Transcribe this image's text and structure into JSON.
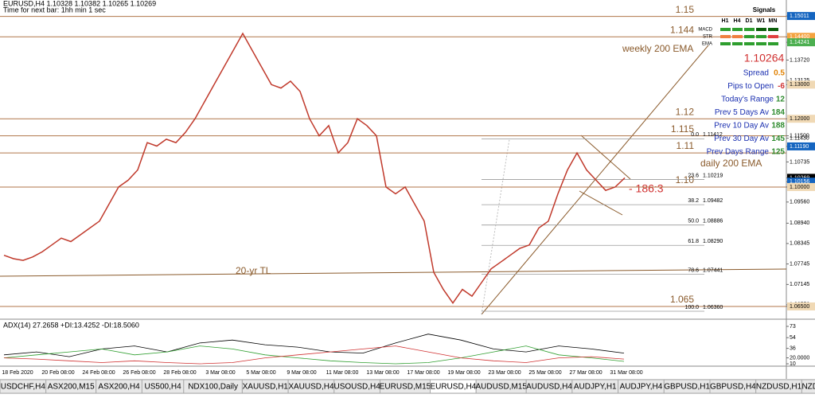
{
  "header": {
    "symbol_line": "EURUSD,H4  1.10328 1.10382 1.10265 1.10269",
    "timer": "Time for next bar: 1hh min 1 sec"
  },
  "price_axis": {
    "ylim": [
      1.0615,
      1.1548
    ],
    "ticks": [
      1.15011,
      {
        "value": 1.144,
        "label": "1.14400"
      },
      1.14241,
      {
        "value": 1.1372,
        "label": "1.13720"
      },
      1.13125,
      {
        "value": 1.13,
        "label": "1.13000"
      },
      {
        "value": 1.12,
        "label": "1.12000"
      },
      {
        "value": 1.1143,
        "label": "1.11430"
      },
      {
        "value": 1.115,
        "label": "1.11500"
      },
      {
        "value": 1.1119,
        "label": "1.11190"
      },
      1.10735,
      1.10269,
      1.10156,
      {
        "value": 1.1,
        "label": "1.10000"
      },
      {
        "value": 1.0956,
        "label": "1.09560"
      },
      {
        "value": 1.0894,
        "label": "1.08940"
      },
      1.08345,
      1.07745,
      1.07145,
      {
        "value": 1.0655,
        "label": "1.06550"
      },
      {
        "value": 1.065,
        "label": "1.06500"
      }
    ],
    "highlight_colors": {
      "1.15011": "#1565c0",
      "1.144": "#f4a340",
      "1.14241": "#4caf50",
      "1.13": "#f0d9b5",
      "1.12": "#f0d9b5",
      "1.1119": "#1565c0",
      "1.10269": "#000000",
      "1.10156": "#1565c0",
      "1.1": "#f0d9b5",
      "1.065": "#f0d9b5"
    }
  },
  "levels": [
    {
      "label": "1.15",
      "value": 1.15
    },
    {
      "label": "1.144",
      "value": 1.144
    },
    {
      "label": "1.12",
      "value": 1.12
    },
    {
      "label": "1.115",
      "value": 1.115
    },
    {
      "label": "1.11",
      "value": 1.11
    },
    {
      "label": "1.10",
      "value": 1.1
    },
    {
      "label": "1.065",
      "value": 1.065
    }
  ],
  "annotations": {
    "weekly_ema": "weekly 200 EMA",
    "daily_ema": "daily 200 EMA",
    "trendline": "20-yr TL",
    "pattern": "- 186:3"
  },
  "fib": [
    {
      "level": "0.0",
      "value": 1.11412,
      "label": "1.11412"
    },
    {
      "level": "23.6",
      "value": 1.10219,
      "label": "1.10219"
    },
    {
      "level": "38.2",
      "value": 1.09482,
      "label": "1.09482"
    },
    {
      "level": "50.0",
      "value": 1.08886,
      "label": "1.08886"
    },
    {
      "level": "61.8",
      "value": 1.0829,
      "label": "1.08290"
    },
    {
      "level": "78.6",
      "value": 1.07441,
      "label": "1.07441"
    },
    {
      "level": "100.0",
      "value": 1.0636,
      "label": "1.06360"
    }
  ],
  "price_path": [
    1.08,
    1.079,
    1.0785,
    1.0795,
    1.081,
    1.083,
    1.085,
    1.084,
    1.086,
    1.088,
    1.09,
    1.095,
    1.1,
    1.102,
    1.105,
    1.113,
    1.112,
    1.114,
    1.113,
    1.116,
    1.12,
    1.125,
    1.13,
    1.135,
    1.14,
    1.145,
    1.14,
    1.135,
    1.13,
    1.129,
    1.131,
    1.128,
    1.12,
    1.115,
    1.118,
    1.11,
    1.113,
    1.12,
    1.118,
    1.115,
    1.1,
    1.098,
    1.1,
    1.095,
    1.09,
    1.075,
    1.07,
    1.066,
    1.07,
    1.068,
    1.072,
    1.076,
    1.078,
    1.08,
    1.082,
    1.083,
    1.088,
    1.09,
    1.098,
    1.105,
    1.11,
    1.105,
    1.102,
    1.099,
    1.1,
    1.1027
  ],
  "signals": {
    "title": "Signals",
    "columns": [
      "H1",
      "H4",
      "D1",
      "W1",
      "MN"
    ],
    "rows": [
      {
        "name": "MACD",
        "colors": [
          "#2e9e2e",
          "#2e9e2e",
          "#2e9e2e",
          "#0b5e0b",
          "#0b5e0b"
        ]
      },
      {
        "name": "STR",
        "colors": [
          "#f08040",
          "#f08040",
          "#2e9e2e",
          "#2e9e2e",
          "#e04040"
        ]
      },
      {
        "name": "EMA",
        "colors": [
          "#2e9e2e",
          "#2e9e2e",
          "#2e9e2e",
          "#2e9e2e",
          "#2e9e2e"
        ]
      }
    ]
  },
  "current_price": 1.10264,
  "stats": [
    {
      "label": "Spread",
      "value": 0.5,
      "color": "#e08000"
    },
    {
      "label": "Pips to Open",
      "value": -6,
      "color": "#d03030"
    },
    {
      "label": "Today's Range",
      "value": 12,
      "color": "#2e8b2e"
    },
    {
      "label": "Prev 5 Days Av",
      "value": 184,
      "color": "#2e8b2e"
    },
    {
      "label": "Prev 10 Day Av",
      "value": 188,
      "color": "#2e8b2e"
    },
    {
      "label": "Prev 30 Day Av",
      "value": 145,
      "color": "#2e8b2e"
    },
    {
      "label": "Prev Days Range",
      "value": 125,
      "color": "#2e8b2e"
    }
  ],
  "adx": {
    "title": "ADX(14) 27.2658 +DI:13.4252 -DI:18.5060",
    "ylim": [
      8.7,
      82.4
    ],
    "ticks": [
      73,
      54,
      36,
      {
        "value": 20,
        "label": "20.0000"
      },
      10
    ],
    "series": [
      {
        "name": "ADX",
        "color": "#000000",
        "values": [
          25,
          30,
          22,
          35,
          40,
          30,
          45,
          50,
          42,
          38,
          30,
          28,
          45,
          60,
          50,
          35,
          30,
          40,
          35,
          28
        ]
      },
      {
        "name": "+DI",
        "color": "#2e9e2e",
        "values": [
          20,
          25,
          30,
          35,
          25,
          30,
          40,
          35,
          25,
          20,
          15,
          12,
          10,
          12,
          20,
          30,
          40,
          25,
          20,
          14
        ]
      },
      {
        "name": "-DI",
        "color": "#d03030",
        "values": [
          20,
          18,
          15,
          12,
          15,
          12,
          10,
          12,
          20,
          25,
          30,
          35,
          40,
          30,
          20,
          15,
          12,
          20,
          22,
          18
        ]
      }
    ]
  },
  "dates": [
    "18 Feb 2020",
    "20 Feb 08:00",
    "24 Feb 08:00",
    "26 Feb 08:00",
    "28 Feb 08:00",
    "3 Mar 08:00",
    "5 Mar 08:00",
    "9 Mar 08:00",
    "11 Mar 08:00",
    "13 Mar 08:00",
    "17 Mar 08:00",
    "19 Mar 08:00",
    "23 Mar 08:00",
    "25 Mar 08:00",
    "27 Mar 08:00",
    "31 Mar 08:00"
  ],
  "tabs": [
    "USDCHF,H4",
    "ASX200,M15",
    "ASX200,H4",
    "US500,H4",
    "NDX100,Daily",
    "XAUUSD,H1",
    "XAUUSD,H4",
    "USOUSD,H4",
    "EURUSD,M15",
    "EURUSD,H4",
    "AUDUSD,M15",
    "AUDUSD,H4",
    "AUDJPY,H1",
    "AUDJPY,H4",
    "GBPUSD,H1",
    "GBPUSD,H4",
    "NZDUSD,H1",
    "NZDUSD"
  ],
  "active_tab": "EURUSD,H4"
}
